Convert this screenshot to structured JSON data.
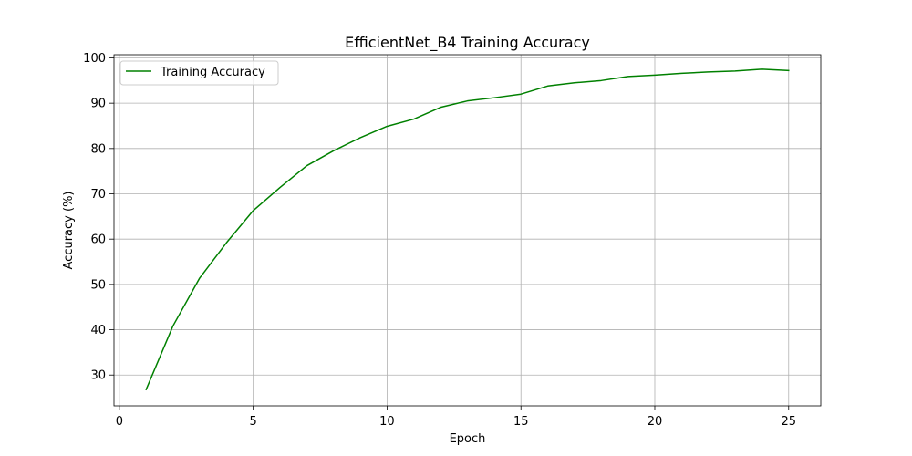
{
  "chart_data": {
    "type": "line",
    "title": "EfficientNet_B4 Training Accuracy",
    "xlabel": "Epoch",
    "ylabel": "Accuracy (%)",
    "xlim": [
      -0.2,
      26.2
    ],
    "ylim": [
      23.2,
      100.7
    ],
    "xticks": [
      0,
      5,
      10,
      15,
      20,
      25
    ],
    "yticks": [
      30,
      40,
      50,
      60,
      70,
      80,
      90,
      100
    ],
    "grid": true,
    "legend_position": "top-left",
    "x": [
      1,
      2,
      3,
      4,
      5,
      6,
      7,
      8,
      9,
      10,
      11,
      12,
      13,
      14,
      15,
      16,
      17,
      18,
      19,
      20,
      21,
      22,
      23,
      24,
      25
    ],
    "series": [
      {
        "name": "Training Accuracy",
        "color": "#008000",
        "values": [
          26.8,
          40.8,
          51.4,
          59.2,
          66.3,
          71.4,
          76.2,
          79.5,
          82.4,
          84.9,
          86.5,
          89.1,
          90.5,
          91.2,
          92.0,
          93.8,
          94.5,
          95.0,
          95.9,
          96.2,
          96.6,
          96.9,
          97.1,
          97.5,
          97.2
        ]
      }
    ]
  }
}
